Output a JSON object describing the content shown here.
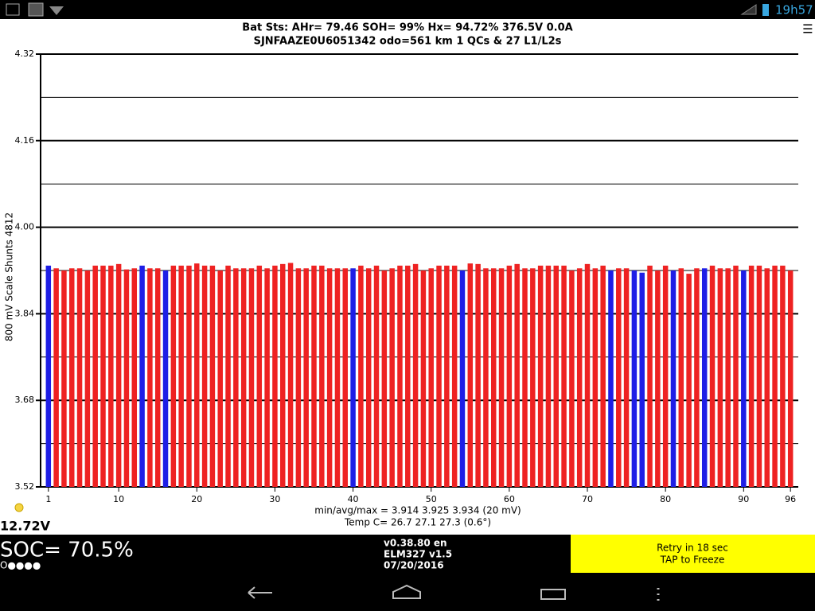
{
  "status_bar": {
    "time": "19h57"
  },
  "chart_data": {
    "type": "bar",
    "title": "Bat Sts:  AHr= 79.46  SOH= 99%  Hx= 94.72%  376.5V 0.0A",
    "subtitle": "SJNFAAZE0U6051342 odo=561 km  1 QCs & 27 L1/L2s",
    "y_label": "800 mV Scale   Shunts 4812",
    "annotations": [
      "min/avg/max = 3.914 3.925 3.934  (20 mV)",
      "Temp C= 26.7  27.1  27.3  (0.6°)"
    ],
    "x": [
      1,
      2,
      3,
      4,
      5,
      6,
      7,
      8,
      9,
      10,
      11,
      12,
      13,
      14,
      15,
      16,
      17,
      18,
      19,
      20,
      21,
      22,
      23,
      24,
      25,
      26,
      27,
      28,
      29,
      30,
      31,
      32,
      33,
      34,
      35,
      36,
      37,
      38,
      39,
      40,
      41,
      42,
      43,
      44,
      45,
      46,
      47,
      48,
      49,
      50,
      51,
      52,
      53,
      54,
      55,
      56,
      57,
      58,
      59,
      60,
      61,
      62,
      63,
      64,
      65,
      66,
      67,
      68,
      69,
      70,
      71,
      72,
      73,
      74,
      75,
      76,
      77,
      78,
      79,
      80,
      81,
      82,
      83,
      84,
      85,
      86,
      87,
      88,
      89,
      90,
      91,
      92,
      93,
      94,
      95,
      96
    ],
    "values": [
      3.929,
      3.924,
      3.92,
      3.924,
      3.924,
      3.92,
      3.929,
      3.929,
      3.929,
      3.932,
      3.922,
      3.924,
      3.929,
      3.924,
      3.924,
      3.92,
      3.929,
      3.929,
      3.929,
      3.933,
      3.929,
      3.929,
      3.92,
      3.929,
      3.924,
      3.924,
      3.924,
      3.929,
      3.924,
      3.929,
      3.932,
      3.934,
      3.924,
      3.924,
      3.929,
      3.929,
      3.924,
      3.924,
      3.924,
      3.924,
      3.929,
      3.924,
      3.929,
      3.92,
      3.924,
      3.929,
      3.929,
      3.932,
      3.92,
      3.924,
      3.929,
      3.929,
      3.929,
      3.92,
      3.933,
      3.932,
      3.924,
      3.924,
      3.924,
      3.929,
      3.932,
      3.924,
      3.924,
      3.929,
      3.929,
      3.929,
      3.929,
      3.92,
      3.924,
      3.932,
      3.924,
      3.929,
      3.92,
      3.924,
      3.924,
      3.92,
      3.916,
      3.929,
      3.92,
      3.929,
      3.92,
      3.924,
      3.914,
      3.924,
      3.924,
      3.929,
      3.924,
      3.924,
      3.929,
      3.92,
      3.929,
      3.929,
      3.924,
      3.929,
      3.929,
      3.92
    ],
    "colors": [
      "#1e1ee6",
      "#ee2222",
      "#ee2222",
      "#ee2222",
      "#ee2222",
      "#ee2222",
      "#ee2222",
      "#ee2222",
      "#ee2222",
      "#ee2222",
      "#ee2222",
      "#ee2222",
      "#1e1ee6",
      "#ee2222",
      "#ee2222",
      "#1e1ee6",
      "#ee2222",
      "#ee2222",
      "#ee2222",
      "#ee2222",
      "#ee2222",
      "#ee2222",
      "#ee2222",
      "#ee2222",
      "#ee2222",
      "#ee2222",
      "#ee2222",
      "#ee2222",
      "#ee2222",
      "#ee2222",
      "#ee2222",
      "#ee2222",
      "#ee2222",
      "#ee2222",
      "#ee2222",
      "#ee2222",
      "#ee2222",
      "#ee2222",
      "#ee2222",
      "#1e1ee6",
      "#ee2222",
      "#ee2222",
      "#ee2222",
      "#ee2222",
      "#ee2222",
      "#ee2222",
      "#ee2222",
      "#ee2222",
      "#ee2222",
      "#ee2222",
      "#ee2222",
      "#ee2222",
      "#ee2222",
      "#1e1ee6",
      "#ee2222",
      "#ee2222",
      "#ee2222",
      "#ee2222",
      "#ee2222",
      "#ee2222",
      "#ee2222",
      "#ee2222",
      "#ee2222",
      "#ee2222",
      "#ee2222",
      "#ee2222",
      "#ee2222",
      "#ee2222",
      "#ee2222",
      "#ee2222",
      "#ee2222",
      "#ee2222",
      "#1e1ee6",
      "#ee2222",
      "#ee2222",
      "#1e1ee6",
      "#1e1ee6",
      "#ee2222",
      "#ee2222",
      "#ee2222",
      "#1e1ee6",
      "#ee2222",
      "#ee2222",
      "#ee2222",
      "#1e1ee6",
      "#ee2222",
      "#ee2222",
      "#ee2222",
      "#ee2222",
      "#1e1ee6",
      "#ee2222",
      "#ee2222",
      "#ee2222",
      "#ee2222",
      "#ee2222",
      "#ee2222"
    ],
    "xlim": [
      0,
      97
    ],
    "xticks": [
      1,
      10,
      20,
      30,
      40,
      50,
      60,
      70,
      80,
      90,
      96
    ],
    "ylim": [
      3.52,
      4.32
    ],
    "yticks": [
      3.52,
      3.68,
      3.84,
      {
        "value": 4.0,
        "label": "4.00"
      },
      4.16,
      4.32
    ],
    "minor_yticks": [
      3.6,
      3.76,
      3.92,
      4.08,
      4.24
    ],
    "grid": true
  },
  "footer": {
    "aux_voltage": "12.72V",
    "soc": "SOC= 70.5%",
    "dots": "O●●●●",
    "version": "v0.38.80 en",
    "adapter": "ELM327 v1.5",
    "date": "07/20/2016",
    "retry": "Retry in 18 sec",
    "freeze": "TAP to Freeze"
  }
}
